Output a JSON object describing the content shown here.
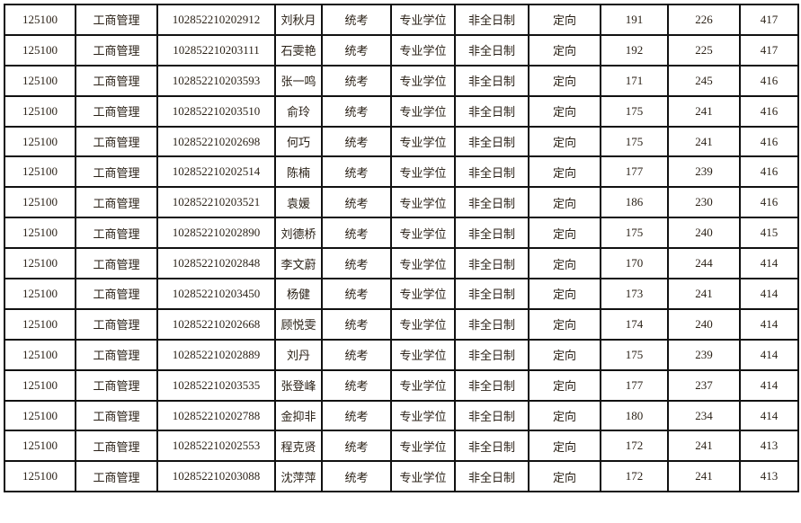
{
  "table": {
    "rows": [
      [
        "125100",
        "工商管理",
        "102852210202912",
        "刘秋月",
        "统考",
        "专业学位",
        "非全日制",
        "定向",
        "191",
        "226",
        "417"
      ],
      [
        "125100",
        "工商管理",
        "102852210203111",
        "石雯艳",
        "统考",
        "专业学位",
        "非全日制",
        "定向",
        "192",
        "225",
        "417"
      ],
      [
        "125100",
        "工商管理",
        "102852210203593",
        "张一鸣",
        "统考",
        "专业学位",
        "非全日制",
        "定向",
        "171",
        "245",
        "416"
      ],
      [
        "125100",
        "工商管理",
        "102852210203510",
        "俞玲",
        "统考",
        "专业学位",
        "非全日制",
        "定向",
        "175",
        "241",
        "416"
      ],
      [
        "125100",
        "工商管理",
        "102852210202698",
        "何巧",
        "统考",
        "专业学位",
        "非全日制",
        "定向",
        "175",
        "241",
        "416"
      ],
      [
        "125100",
        "工商管理",
        "102852210202514",
        "陈楠",
        "统考",
        "专业学位",
        "非全日制",
        "定向",
        "177",
        "239",
        "416"
      ],
      [
        "125100",
        "工商管理",
        "102852210203521",
        "袁媛",
        "统考",
        "专业学位",
        "非全日制",
        "定向",
        "186",
        "230",
        "416"
      ],
      [
        "125100",
        "工商管理",
        "102852210202890",
        "刘德桥",
        "统考",
        "专业学位",
        "非全日制",
        "定向",
        "175",
        "240",
        "415"
      ],
      [
        "125100",
        "工商管理",
        "102852210202848",
        "李文蔚",
        "统考",
        "专业学位",
        "非全日制",
        "定向",
        "170",
        "244",
        "414"
      ],
      [
        "125100",
        "工商管理",
        "102852210203450",
        "杨健",
        "统考",
        "专业学位",
        "非全日制",
        "定向",
        "173",
        "241",
        "414"
      ],
      [
        "125100",
        "工商管理",
        "102852210202668",
        "顾悦雯",
        "统考",
        "专业学位",
        "非全日制",
        "定向",
        "174",
        "240",
        "414"
      ],
      [
        "125100",
        "工商管理",
        "102852210202889",
        "刘丹",
        "统考",
        "专业学位",
        "非全日制",
        "定向",
        "175",
        "239",
        "414"
      ],
      [
        "125100",
        "工商管理",
        "102852210203535",
        "张登峰",
        "统考",
        "专业学位",
        "非全日制",
        "定向",
        "177",
        "237",
        "414"
      ],
      [
        "125100",
        "工商管理",
        "102852210202788",
        "金抑非",
        "统考",
        "专业学位",
        "非全日制",
        "定向",
        "180",
        "234",
        "414"
      ],
      [
        "125100",
        "工商管理",
        "102852210202553",
        "程克贤",
        "统考",
        "专业学位",
        "非全日制",
        "定向",
        "172",
        "241",
        "413"
      ],
      [
        "125100",
        "工商管理",
        "102852210203088",
        "沈萍萍",
        "统考",
        "专业学位",
        "非全日制",
        "定向",
        "172",
        "241",
        "413"
      ]
    ]
  }
}
